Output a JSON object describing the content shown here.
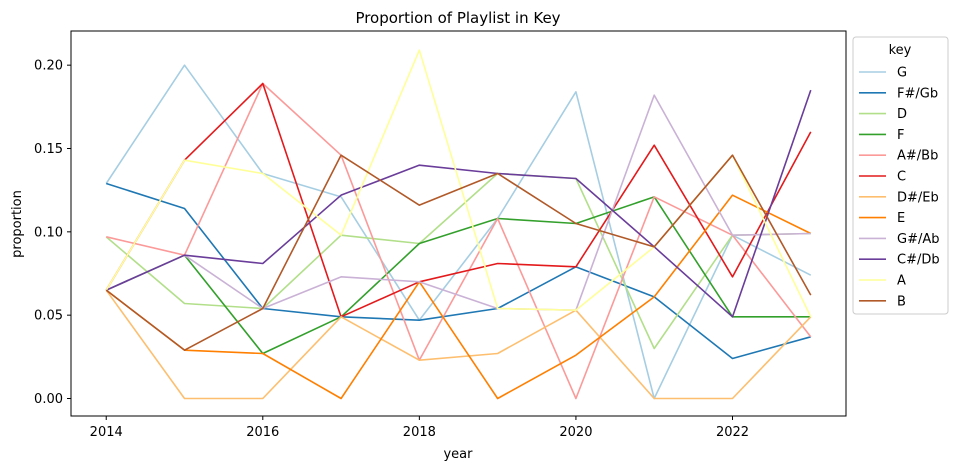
{
  "chart_data": {
    "type": "line",
    "title": "Proportion of Playlist in Key",
    "xlabel": "year",
    "ylabel": "proportion",
    "xlim": [
      2013.55,
      2023.45
    ],
    "ylim": [
      -0.0105,
      0.2205
    ],
    "x_ticks": [
      2014,
      2016,
      2018,
      2020,
      2022
    ],
    "y_ticks": [
      0.0,
      0.05,
      0.1,
      0.15,
      0.2
    ],
    "y_tick_labels": [
      "0.00",
      "0.05",
      "0.10",
      "0.15",
      "0.20"
    ],
    "grid": false,
    "legend": {
      "title": "key",
      "placement": "outside-right-top"
    },
    "x": [
      2014,
      2015,
      2016,
      2017,
      2018,
      2019,
      2020,
      2021,
      2022,
      2023
    ],
    "series": [
      {
        "name": "G",
        "color": "#a6cee3",
        "values": [
          0.129,
          0.2,
          0.135,
          0.121,
          0.047,
          0.108,
          0.184,
          0.0,
          0.098,
          0.074
        ]
      },
      {
        "name": "F#/Gb",
        "color": "#1f78b4",
        "values": [
          0.129,
          0.114,
          0.054,
          0.049,
          0.047,
          0.054,
          0.079,
          0.061,
          0.024,
          0.037
        ]
      },
      {
        "name": "D",
        "color": "#b2df8a",
        "values": [
          0.097,
          0.057,
          0.054,
          0.098,
          0.093,
          0.135,
          0.132,
          0.03,
          0.098,
          0.099
        ]
      },
      {
        "name": "F",
        "color": "#33a02c",
        "values": [
          0.065,
          0.086,
          0.027,
          0.049,
          0.093,
          0.108,
          0.105,
          0.121,
          0.049,
          0.049
        ]
      },
      {
        "name": "A#/Bb",
        "color": "#fb9a99",
        "values": [
          0.097,
          0.086,
          0.189,
          0.146,
          0.023,
          0.108,
          0.0,
          0.121,
          0.098,
          0.037
        ]
      },
      {
        "name": "C",
        "color": "#e31a1c",
        "values": [
          0.065,
          0.143,
          0.189,
          0.049,
          0.07,
          0.081,
          0.079,
          0.152,
          0.073,
          0.16
        ]
      },
      {
        "name": "D#/Eb",
        "color": "#fdbf6f",
        "values": [
          0.065,
          0.0,
          0.0,
          0.049,
          0.023,
          0.027,
          0.053,
          0.0,
          0.0,
          0.049
        ]
      },
      {
        "name": "E",
        "color": "#ff7f00",
        "values": [
          0.065,
          0.029,
          0.027,
          0.0,
          0.07,
          0.0,
          0.026,
          0.061,
          0.122,
          0.099
        ]
      },
      {
        "name": "G#/Ab",
        "color": "#cab2d6",
        "values": [
          0.065,
          0.086,
          0.054,
          0.073,
          0.07,
          0.054,
          0.053,
          0.182,
          0.098,
          0.099
        ]
      },
      {
        "name": "C#/Db",
        "color": "#6a3d9a",
        "values": [
          0.065,
          0.086,
          0.081,
          0.122,
          0.14,
          0.135,
          0.132,
          0.091,
          0.049,
          0.185
        ]
      },
      {
        "name": "A",
        "color": "#ffff99",
        "values": [
          0.065,
          0.143,
          0.135,
          0.098,
          0.209,
          0.054,
          0.053,
          0.091,
          0.146,
          0.049
        ]
      },
      {
        "name": "B",
        "color": "#b15928",
        "values": [
          0.065,
          0.029,
          0.054,
          0.146,
          0.116,
          0.135,
          0.105,
          0.091,
          0.146,
          0.062
        ]
      }
    ]
  }
}
